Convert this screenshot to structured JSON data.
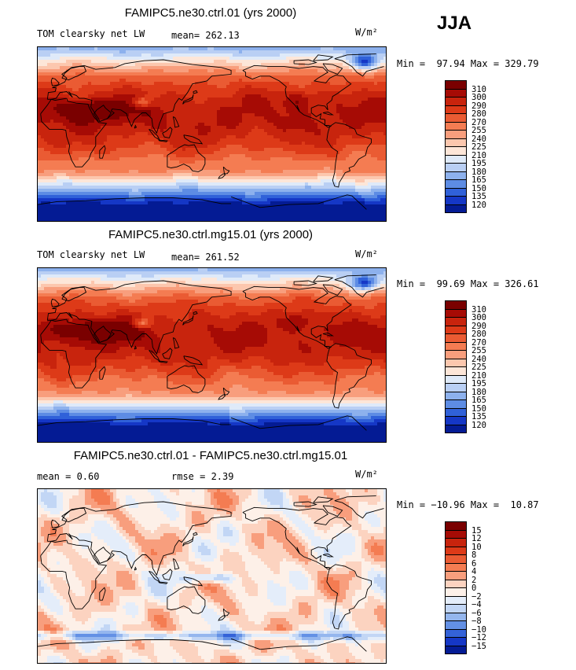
{
  "season": "JJA",
  "panels": [
    {
      "title": "FAMIPC5.ne30.ctrl.01 (yrs 2000)",
      "left_label": "TOM clearsky net LW",
      "stat1": "mean= 262.13",
      "stat2": "",
      "units": "W/m²",
      "minmax": "Min =  97.94 Max = 329.79",
      "levels": [
        "310",
        "300",
        "290",
        "280",
        "270",
        "255",
        "240",
        "225",
        "210",
        "195",
        "180",
        "165",
        "150",
        "135",
        "120"
      ],
      "colors": [
        "#7a0000",
        "#a60b05",
        "#c8240d",
        "#dd3a18",
        "#ea5b33",
        "#f47c52",
        "#f89e7d",
        "#fcc7ae",
        "#fde6d8",
        "#dfeaf9",
        "#b9cff4",
        "#8db1ed",
        "#5d8ce4",
        "#3061d9",
        "#1537c6",
        "#041b94"
      ]
    },
    {
      "title": "FAMIPC5.ne30.ctrl.mg15.01 (yrs 2000)",
      "left_label": "TOM clearsky net LW",
      "stat1": "mean= 261.52",
      "stat2": "",
      "units": "W/m²",
      "minmax": "Min =  99.69 Max = 326.61",
      "levels": [
        "310",
        "300",
        "290",
        "280",
        "270",
        "255",
        "240",
        "225",
        "210",
        "195",
        "180",
        "165",
        "150",
        "135",
        "120"
      ],
      "colors": [
        "#7a0000",
        "#a60b05",
        "#c8240d",
        "#dd3a18",
        "#ea5b33",
        "#f47c52",
        "#f89e7d",
        "#fcc7ae",
        "#fde6d8",
        "#dfeaf9",
        "#b9cff4",
        "#8db1ed",
        "#5d8ce4",
        "#3061d9",
        "#1537c6",
        "#041b94"
      ]
    },
    {
      "title": "FAMIPC5.ne30.ctrl.01 - FAMIPC5.ne30.ctrl.mg15.01",
      "left_label": "mean =    0.60",
      "stat1": "rmse =    2.39",
      "stat2": "",
      "units": "W/m²",
      "minmax": "Min = −10.96 Max =  10.87",
      "levels": [
        "15",
        "12",
        "10",
        "8",
        "6",
        "4",
        "2",
        "0",
        "−2",
        "−4",
        "−6",
        "−8",
        "−10",
        "−12",
        "−15"
      ],
      "colors": [
        "#7a0000",
        "#a60b05",
        "#c8240d",
        "#dd3a18",
        "#ea5b33",
        "#f47c52",
        "#f89e7d",
        "#fcd3c0",
        "#fdf0e8",
        "#e4edfa",
        "#c2d6f5",
        "#94b6ee",
        "#6390e5",
        "#3462d8",
        "#1537c6",
        "#041b94"
      ]
    }
  ]
}
